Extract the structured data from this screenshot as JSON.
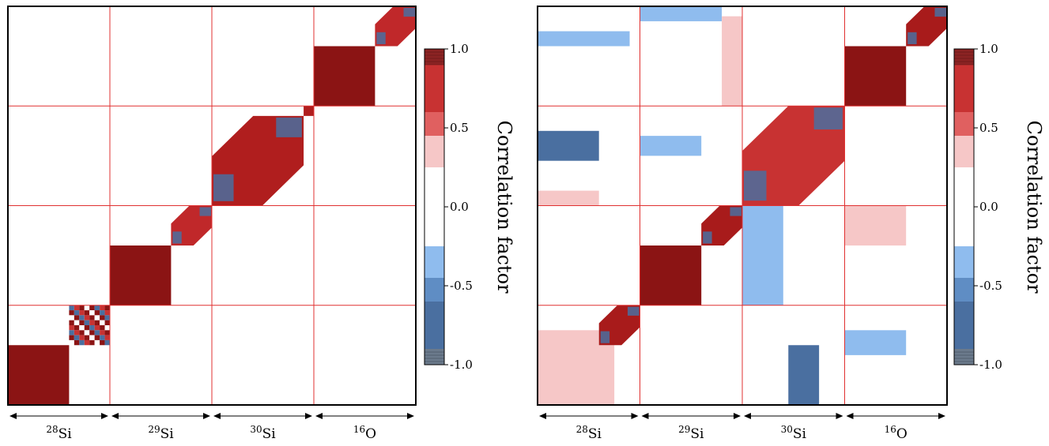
{
  "chart_data": [
    {
      "type": "heatmap",
      "panel": "left",
      "colorbar": {
        "label": "Correlation factor",
        "ticks": [
          "1.0",
          "0.5",
          "0.0",
          "-0.5",
          "-1.0"
        ],
        "range": [
          -1.0,
          1.0
        ]
      },
      "groups": [
        {
          "mass": "28",
          "element": "Si"
        },
        {
          "mass": "29",
          "element": "Si"
        },
        {
          "mass": "30",
          "element": "Si"
        },
        {
          "mass": "16",
          "element": "O"
        }
      ],
      "blocks": [
        {
          "x": [
            0.0,
            0.6
          ],
          "y": [
            0.0,
            0.6
          ],
          "value": 0.95,
          "color": "#8b1414"
        },
        {
          "x": [
            0.6,
            1.0
          ],
          "y": [
            0.6,
            1.0
          ],
          "value": 0.3,
          "color": "#b03030",
          "pattern": "mixed"
        },
        {
          "x": [
            1.0,
            1.6
          ],
          "y": [
            1.0,
            1.6
          ],
          "value": 0.95,
          "color": "#8b1414"
        },
        {
          "x": [
            1.6,
            2.0
          ],
          "y": [
            1.6,
            2.0
          ],
          "value": 0.7,
          "color": "#c0282a",
          "pattern": "diagonal"
        },
        {
          "x": [
            2.0,
            2.9
          ],
          "y": [
            2.0,
            2.9
          ],
          "value": 0.8,
          "color": "#b01e1e",
          "pattern": "diagonal"
        },
        {
          "x": [
            2.9,
            3.0
          ],
          "y": [
            2.9,
            3.0
          ],
          "value": 0.8,
          "color": "#b01e1e"
        },
        {
          "x": [
            3.0,
            3.6
          ],
          "y": [
            3.0,
            3.6
          ],
          "value": 0.95,
          "color": "#8b1414"
        },
        {
          "x": [
            3.6,
            4.0
          ],
          "y": [
            3.6,
            4.0
          ],
          "value": 0.7,
          "color": "#c0282a",
          "pattern": "diagonal"
        }
      ]
    },
    {
      "type": "heatmap",
      "panel": "right",
      "colorbar": {
        "label": "Correlation factor",
        "ticks": [
          "1.0",
          "0.5",
          "0.0",
          "-0.5",
          "-1.0"
        ],
        "range": [
          -1.0,
          1.0
        ]
      },
      "groups": [
        {
          "mass": "28",
          "element": "Si"
        },
        {
          "mass": "29",
          "element": "Si"
        },
        {
          "mass": "30",
          "element": "Si"
        },
        {
          "mass": "16",
          "element": "O"
        }
      ],
      "blocks": [
        {
          "x": [
            0.0,
            0.6
          ],
          "y": [
            0.0,
            0.6
          ],
          "value": 0.95,
          "color": "#8b1414"
        },
        {
          "x": [
            0.0,
            0.75
          ],
          "y": [
            0.0,
            0.75
          ],
          "value": 0.25,
          "color": "#f6c7c7"
        },
        {
          "x": [
            0.6,
            1.0
          ],
          "y": [
            0.6,
            1.0
          ],
          "value": 0.8,
          "color": "#a81b1b",
          "pattern": "diagonal"
        },
        {
          "x": [
            1.0,
            1.6
          ],
          "y": [
            1.0,
            1.6
          ],
          "value": 0.95,
          "color": "#8b1414"
        },
        {
          "x": [
            1.6,
            2.0
          ],
          "y": [
            1.6,
            2.0
          ],
          "value": 0.8,
          "color": "#a81b1b",
          "pattern": "diagonal"
        },
        {
          "x": [
            2.0,
            3.0
          ],
          "y": [
            2.0,
            3.0
          ],
          "value": 0.5,
          "color": "#c83232",
          "pattern": "diagonal"
        },
        {
          "x": [
            3.0,
            3.6
          ],
          "y": [
            3.0,
            3.6
          ],
          "value": 0.95,
          "color": "#8b1414"
        },
        {
          "x": [
            3.6,
            4.0
          ],
          "y": [
            3.6,
            4.0
          ],
          "value": 0.8,
          "color": "#a81b1b",
          "pattern": "diagonal"
        },
        {
          "x": [
            2.45,
            2.75
          ],
          "y": [
            0.0,
            0.6
          ],
          "value": -0.75,
          "color": "#4a6fa0"
        },
        {
          "x": [
            0.0,
            0.6
          ],
          "y": [
            2.45,
            2.75
          ],
          "value": -0.75,
          "color": "#4a6fa0"
        },
        {
          "x": [
            3.0,
            3.6
          ],
          "y": [
            1.6,
            2.0
          ],
          "value": 0.25,
          "color": "#f6c7c7"
        },
        {
          "x": [
            0.0,
            0.9
          ],
          "y": [
            3.6,
            3.75
          ],
          "value": -0.35,
          "color": "#8fbcee"
        },
        {
          "x": [
            1.0,
            1.8
          ],
          "y": [
            3.85,
            4.0
          ],
          "value": -0.35,
          "color": "#8fbcee"
        },
        {
          "x": [
            3.0,
            3.6
          ],
          "y": [
            0.5,
            0.75
          ],
          "value": -0.35,
          "color": "#8fbcee"
        },
        {
          "x": [
            1.0,
            1.6
          ],
          "y": [
            2.5,
            2.7
          ],
          "value": -0.35,
          "color": "#8fbcee"
        },
        {
          "x": [
            2.0,
            2.4
          ],
          "y": [
            1.0,
            2.0
          ],
          "value": -0.35,
          "color": "#8fbcee"
        },
        {
          "x": [
            1.8,
            2.0
          ],
          "y": [
            3.0,
            3.9
          ],
          "value": 0.25,
          "color": "#f6c7c7"
        },
        {
          "x": [
            0.0,
            0.6
          ],
          "y": [
            2.0,
            2.15
          ],
          "value": 0.25,
          "color": "#f6c7c7"
        }
      ]
    }
  ]
}
